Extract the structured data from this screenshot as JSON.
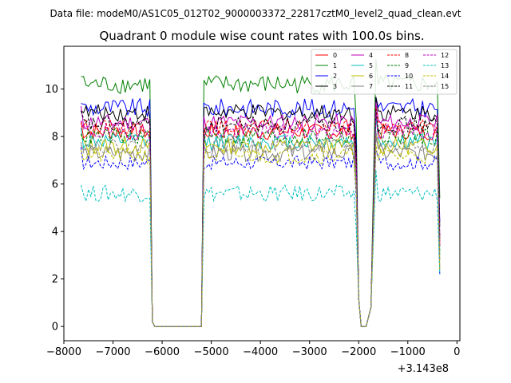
{
  "figure": {
    "suptitle": "Data file: modeM0/AS1C05_012T02_9000003372_22817cztM0_level2_quad_clean.evt",
    "title": "Quadrant 0 module wise count rates with 100.0s bins.",
    "offset_label": "+3.143e8"
  },
  "chart_data": {
    "type": "line",
    "title": "Quadrant 0 module wise count rates with 100.0s bins.",
    "xlabel": "",
    "ylabel": "",
    "x_offset": 314300000,
    "xlim": [
      -8000,
      60
    ],
    "ylim": [
      -0.6,
      11.8
    ],
    "xticks": [
      -8000,
      -7000,
      -6000,
      -5000,
      -4000,
      -3000,
      -2000,
      -1000,
      0
    ],
    "xtick_labels": [
      "−8000",
      "−7000",
      "−6000",
      "−5000",
      "−4000",
      "−3000",
      "−2000",
      "−1000",
      "0"
    ],
    "yticks": [
      0,
      2,
      4,
      6,
      8,
      10
    ],
    "ytick_labels": [
      "0",
      "2",
      "4",
      "6",
      "8",
      "10"
    ],
    "legend_position": "top-right",
    "segments": [
      {
        "x_start": -7650,
        "x_end": -6250
      },
      {
        "x_start": -6200,
        "x_end": -5200,
        "gap": true
      },
      {
        "x_start": -5150,
        "x_end": -2050
      },
      {
        "x_start": -2000,
        "x_end": -1700,
        "gap": true
      },
      {
        "x_start": -1650,
        "x_end": -350
      }
    ],
    "series": [
      {
        "name": "0",
        "color": "#ff0000",
        "style": "solid",
        "level": 8.2,
        "amp": 0.35
      },
      {
        "name": "1",
        "color": "#008000",
        "style": "solid",
        "level": 10.2,
        "amp": 0.4
      },
      {
        "name": "2",
        "color": "#0000ff",
        "style": "solid",
        "level": 9.2,
        "amp": 0.4
      },
      {
        "name": "3",
        "color": "#000000",
        "style": "solid",
        "level": 9.0,
        "amp": 0.35
      },
      {
        "name": "4",
        "color": "#bf00bf",
        "style": "solid",
        "level": 8.6,
        "amp": 0.35
      },
      {
        "name": "5",
        "color": "#00bfbf",
        "style": "solid",
        "level": 7.8,
        "amp": 0.35
      },
      {
        "name": "6",
        "color": "#bfbf00",
        "style": "solid",
        "level": 7.6,
        "amp": 0.35
      },
      {
        "name": "7",
        "color": "#808080",
        "style": "solid",
        "level": 7.3,
        "amp": 0.35
      },
      {
        "name": "8",
        "color": "#ff0000",
        "style": "dashed",
        "level": 8.4,
        "amp": 0.3
      },
      {
        "name": "9",
        "color": "#008000",
        "style": "dashed",
        "level": 8.0,
        "amp": 0.35
      },
      {
        "name": "10",
        "color": "#0000ff",
        "style": "dashed",
        "level": 6.9,
        "amp": 0.3
      },
      {
        "name": "11",
        "color": "#000000",
        "style": "dashed",
        "level": 8.5,
        "amp": 0.35
      },
      {
        "name": "12",
        "color": "#bf00bf",
        "style": "dashed",
        "level": 8.2,
        "amp": 0.35
      },
      {
        "name": "13",
        "color": "#00bfbf",
        "style": "dashed",
        "level": 5.6,
        "amp": 0.35
      },
      {
        "name": "14",
        "color": "#bfbf00",
        "style": "dashed",
        "level": 7.2,
        "amp": 0.35
      },
      {
        "name": "15",
        "color": "#808080",
        "style": "dashed",
        "level": 7.6,
        "amp": 0.3
      }
    ]
  }
}
